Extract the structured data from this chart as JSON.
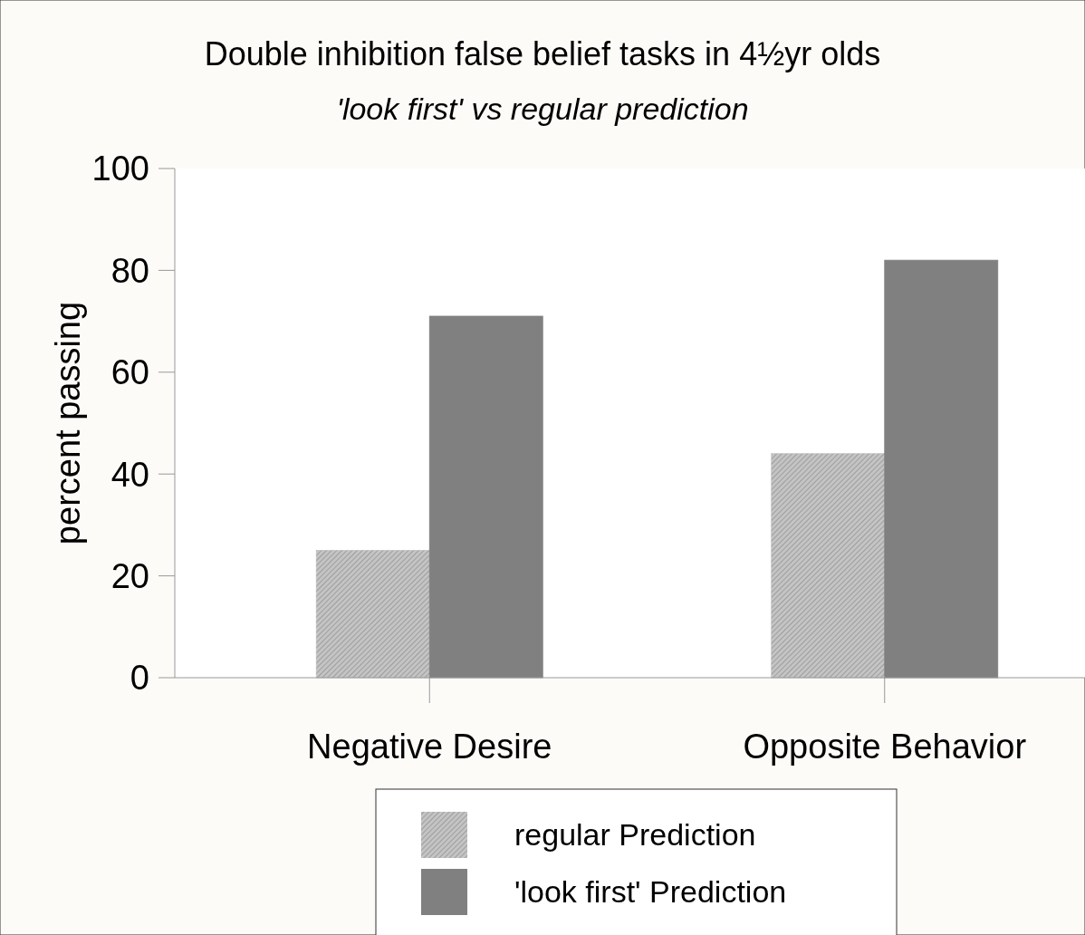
{
  "chart_data": {
    "type": "bar",
    "title": "Double inhibition false belief tasks in 4½yr olds",
    "subtitle": "'look first' vs regular prediction",
    "ylabel": "percent passing",
    "categories": [
      "Negative Desire",
      "Opposite Behavior"
    ],
    "series": [
      {
        "name": "regular Prediction",
        "color": "#c4c4c4",
        "values": [
          25,
          44
        ]
      },
      {
        "name": "'look first' Prediction",
        "color": "#808080",
        "values": [
          71,
          82
        ]
      }
    ],
    "ylim": [
      0,
      100
    ],
    "yticks": [
      0,
      20,
      40,
      60,
      80,
      100
    ],
    "grid": false,
    "legend": "bottom"
  }
}
